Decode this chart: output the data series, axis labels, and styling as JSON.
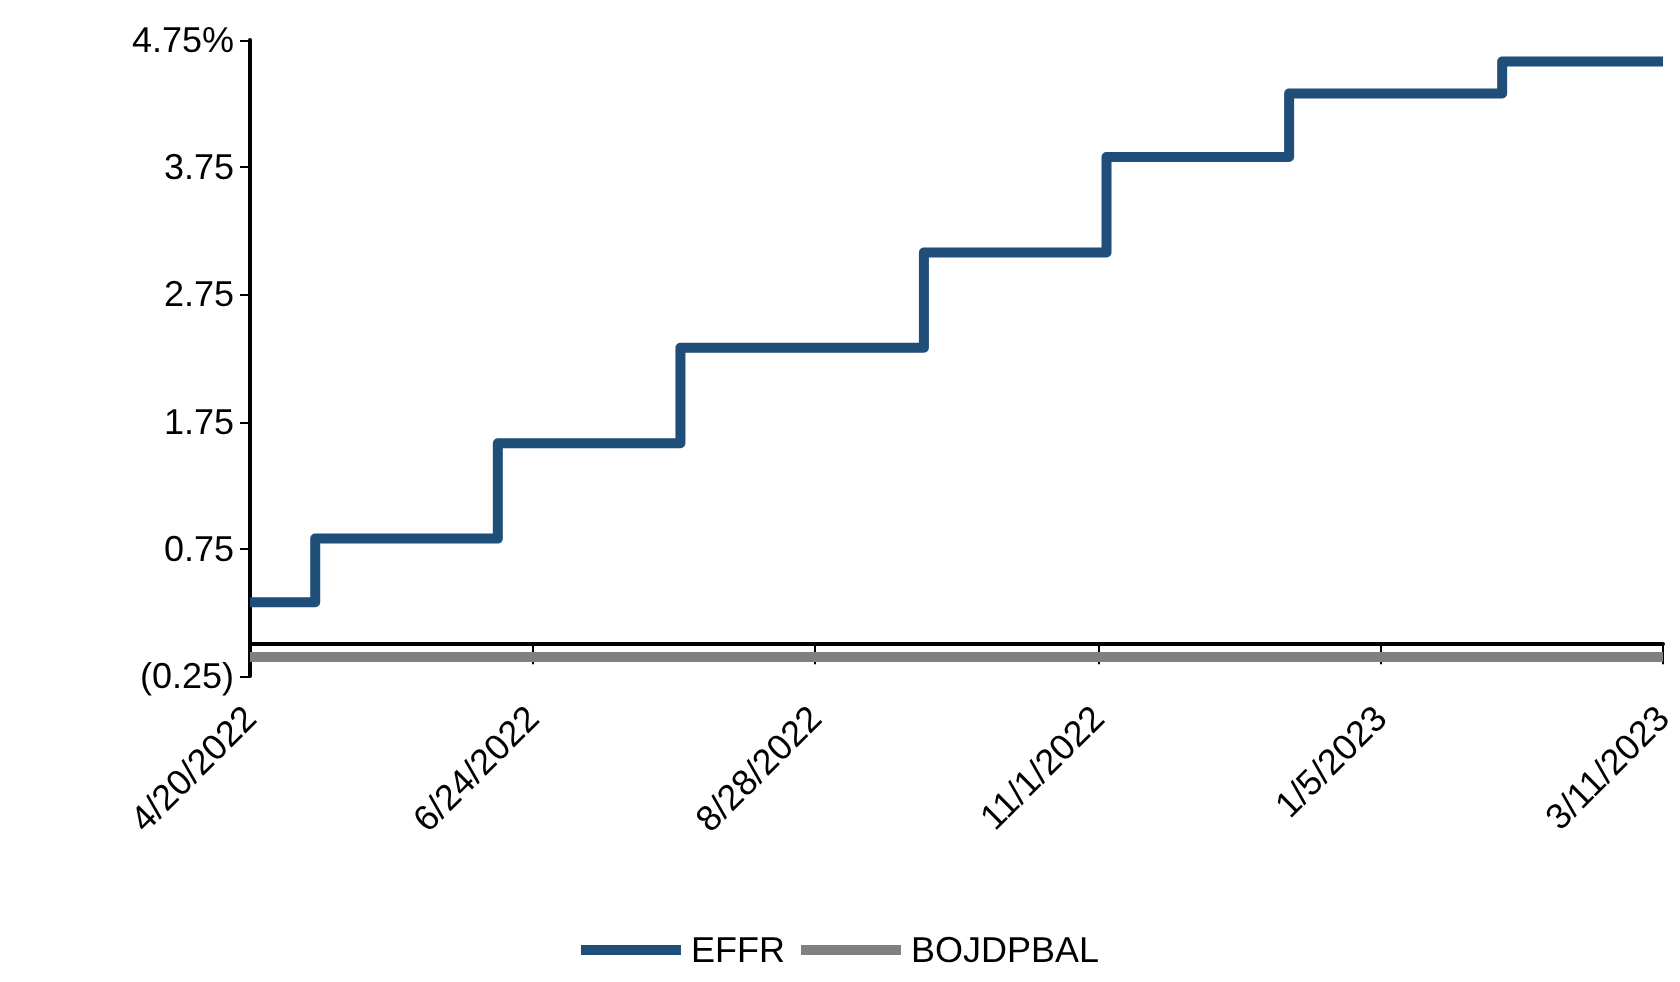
{
  "chart_data": {
    "type": "step",
    "xlim": [
      "2022-04-20",
      "2023-03-11"
    ],
    "xticks": [
      {
        "value": "2022-04-20",
        "label": "4/20/2022"
      },
      {
        "value": "2022-06-24",
        "label": "6/24/2022"
      },
      {
        "value": "2022-08-28",
        "label": "8/28/2022"
      },
      {
        "value": "2022-11-01",
        "label": "11/1/2022"
      },
      {
        "value": "2023-01-05",
        "label": "1/5/2023"
      },
      {
        "value": "2023-03-11",
        "label": "3/11/2023"
      }
    ],
    "ylim": [
      -0.25,
      4.75
    ],
    "yticks": [
      {
        "value": -0.25,
        "label": "(0.25)"
      },
      0.75,
      1.75,
      2.75,
      3.75,
      {
        "value": 4.75,
        "label": "4.75%"
      }
    ],
    "series": [
      {
        "name": "EFFR",
        "color": "#1f4e79",
        "x": [
          "2022-04-20",
          "2022-05-05",
          "2022-06-16",
          "2022-07-28",
          "2022-09-22",
          "2022-11-03",
          "2022-12-15",
          "2023-02-02",
          "2023-03-11"
        ],
        "values": [
          0.33,
          0.83,
          1.58,
          2.33,
          3.08,
          3.83,
          4.33,
          4.58,
          4.58
        ]
      },
      {
        "name": "BOJDPBAL",
        "color": "#808080",
        "type": "line",
        "x": [
          "2022-04-20",
          "2023-03-11"
        ],
        "values": [
          -0.1,
          -0.1
        ]
      }
    ],
    "legend": "bottom",
    "grid": false,
    "marker": "none",
    "line_style": "solid"
  }
}
